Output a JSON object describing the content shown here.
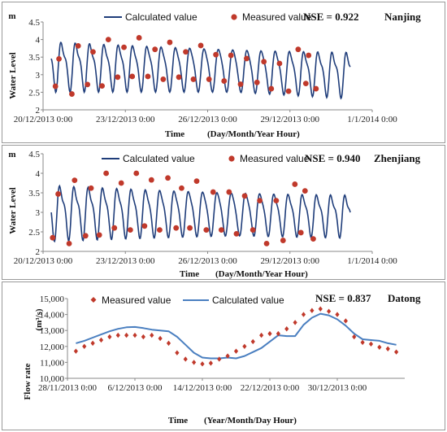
{
  "chart_data": [
    {
      "type": "line",
      "station": "Nanjing",
      "nse": "NSE = 0.922",
      "ylabel": "Water Level",
      "yunit": "m",
      "xlabel_main": "Time",
      "xlabel_sub": "(Day/Month/Year  Hour)",
      "ylim": [
        2,
        4.5
      ],
      "yticks": [
        "2",
        "2.5",
        "3",
        "3.5",
        "4",
        "4.5"
      ],
      "xlim": [
        0,
        12
      ],
      "xtick_labels": [
        "20/12/2013 0:00",
        "23/12/2013 0:00",
        "26/12/2013 0:00",
        "29/12/2013 0:00",
        "1/1/2014 0:00"
      ],
      "xtick_days": [
        0,
        3,
        6,
        9,
        12
      ],
      "legend": [
        "Calculated value",
        "Measured value"
      ],
      "series": [
        {
          "name": "Calculated value",
          "model": "tide",
          "x_range": [
            0.3,
            11.2
          ],
          "params": {
            "mean": 3.3,
            "amp_start": 0.85,
            "amp_end": 0.78,
            "mean_drift": -0.25,
            "period": 0.52,
            "phase": 0.05,
            "high_amp_start": 1.0,
            "high_amp_mid": 0.4,
            "mid_day": 7.0
          }
        },
        {
          "name": "Measured value",
          "points": [
            [
              0.45,
              2.67
            ],
            [
              0.58,
              3.45
            ],
            [
              1.05,
              2.45
            ],
            [
              1.28,
              3.82
            ],
            [
              1.62,
              2.72
            ],
            [
              1.82,
              3.65
            ],
            [
              2.15,
              2.68
            ],
            [
              2.38,
              4.0
            ],
            [
              2.72,
              2.93
            ],
            [
              2.95,
              3.78
            ],
            [
              3.25,
              2.95
            ],
            [
              3.5,
              4.05
            ],
            [
              3.82,
              2.95
            ],
            [
              4.08,
              3.72
            ],
            [
              4.38,
              2.87
            ],
            [
              4.62,
              3.92
            ],
            [
              4.95,
              2.93
            ],
            [
              5.2,
              3.65
            ],
            [
              5.48,
              2.87
            ],
            [
              5.75,
              3.83
            ],
            [
              6.05,
              2.87
            ],
            [
              6.3,
              3.57
            ],
            [
              6.6,
              2.82
            ],
            [
              6.85,
              3.55
            ],
            [
              7.2,
              2.73
            ],
            [
              7.42,
              3.46
            ],
            [
              7.8,
              2.78
            ],
            [
              8.05,
              3.37
            ],
            [
              8.32,
              2.6
            ],
            [
              8.62,
              3.32
            ],
            [
              8.95,
              2.53
            ],
            [
              9.3,
              3.72
            ],
            [
              9.58,
              2.75
            ],
            [
              9.68,
              3.55
            ],
            [
              9.95,
              2.6
            ]
          ]
        }
      ]
    },
    {
      "type": "line",
      "station": "Zhenjiang",
      "nse": "NSE = 0.940",
      "ylabel": "Water Level",
      "yunit": "m",
      "xlabel_main": "Time",
      "xlabel_sub": "(Day/Month/Year  Hour)",
      "ylim": [
        2,
        4.5
      ],
      "yticks": [
        "2",
        "2.5",
        "3",
        "3.5",
        "4",
        "4.5"
      ],
      "xlim": [
        0,
        12
      ],
      "xtick_labels": [
        "20/12/2013 0:00",
        "23/12/2013 0:00",
        "26/12/2013 0:00",
        "29/12/2013 0:00",
        "1/1/2014 0:00"
      ],
      "xtick_days": [
        0,
        3,
        6,
        9,
        12
      ],
      "legend": [
        "Calculated value",
        "Measured value"
      ],
      "series": [
        {
          "name": "Calculated value",
          "model": "tide",
          "x_range": [
            0.3,
            11.2
          ],
          "params": {
            "mean": 3.05,
            "amp_start": 0.85,
            "amp_end": 0.65,
            "mean_drift": -0.1,
            "period": 0.52,
            "phase": 0.0,
            "high_amp_start": 1.0,
            "high_amp_mid": 0.45,
            "mid_day": 7.0
          }
        },
        {
          "name": "Measured value",
          "points": [
            [
              0.35,
              2.35
            ],
            [
              0.55,
              3.47
            ],
            [
              0.95,
              2.2
            ],
            [
              1.15,
              3.82
            ],
            [
              1.55,
              2.4
            ],
            [
              1.75,
              3.62
            ],
            [
              2.05,
              2.42
            ],
            [
              2.3,
              4.0
            ],
            [
              2.6,
              2.6
            ],
            [
              2.85,
              3.75
            ],
            [
              3.18,
              2.55
            ],
            [
              3.4,
              4.0
            ],
            [
              3.7,
              2.65
            ],
            [
              3.95,
              3.83
            ],
            [
              4.25,
              2.55
            ],
            [
              4.55,
              3.88
            ],
            [
              4.85,
              2.6
            ],
            [
              5.05,
              3.62
            ],
            [
              5.35,
              2.6
            ],
            [
              5.6,
              3.8
            ],
            [
              5.95,
              2.55
            ],
            [
              6.2,
              3.52
            ],
            [
              6.5,
              2.55
            ],
            [
              6.78,
              3.52
            ],
            [
              7.05,
              2.45
            ],
            [
              7.35,
              3.42
            ],
            [
              7.65,
              2.55
            ],
            [
              7.9,
              3.3
            ],
            [
              8.15,
              2.2
            ],
            [
              8.5,
              3.3
            ],
            [
              8.75,
              2.28
            ],
            [
              9.18,
              3.72
            ],
            [
              9.4,
              2.48
            ],
            [
              9.55,
              3.55
            ],
            [
              9.85,
              2.32
            ]
          ]
        }
      ]
    },
    {
      "type": "line",
      "station": "Datong",
      "nse": "NSE = 0.837",
      "ylabel": "Flow rate",
      "yunit": "(m³/s)",
      "xlabel_main": "Time",
      "xlabel_sub": "(Year/Month/Day  Hour)",
      "ylim": [
        10000,
        15000
      ],
      "yticks": [
        "10,000",
        "11,000",
        "12,000",
        "13,000",
        "14,000",
        "15,000"
      ],
      "xlim": [
        0,
        40
      ],
      "xtick_labels": [
        "28/11/2013 0:00",
        "6/12/2013 0:00",
        "14/12/2013 0:00",
        "22/12/2013 0:00",
        "30/12/2013 0:00"
      ],
      "xtick_days": [
        0,
        8,
        16,
        24,
        32
      ],
      "legend": [
        "Measured value",
        "Calculated value"
      ],
      "series": [
        {
          "name": "Calculated value",
          "points": [
            [
              1,
              12200
            ],
            [
              2,
              12350
            ],
            [
              3,
              12550
            ],
            [
              4,
              12750
            ],
            [
              5,
              12950
            ],
            [
              6,
              13100
            ],
            [
              7,
              13200
            ],
            [
              8,
              13220
            ],
            [
              9,
              13150
            ],
            [
              10,
              13050
            ],
            [
              11,
              13000
            ],
            [
              12,
              12950
            ],
            [
              13,
              12600
            ],
            [
              14,
              12100
            ],
            [
              15,
              11600
            ],
            [
              16,
              11300
            ],
            [
              17,
              11250
            ],
            [
              18,
              11250
            ],
            [
              19,
              11300
            ],
            [
              20,
              11250
            ],
            [
              21,
              11400
            ],
            [
              22,
              11650
            ],
            [
              23,
              11900
            ],
            [
              24,
              12300
            ],
            [
              25,
              12700
            ],
            [
              26,
              12650
            ],
            [
              27,
              12650
            ],
            [
              28,
              13350
            ],
            [
              29,
              13800
            ],
            [
              30,
              14050
            ],
            [
              31,
              13950
            ],
            [
              32,
              13700
            ],
            [
              33,
              13300
            ],
            [
              34,
              12800
            ],
            [
              35,
              12450
            ],
            [
              36,
              12400
            ],
            [
              37,
              12350
            ],
            [
              38,
              12200
            ],
            [
              39,
              12100
            ]
          ]
        },
        {
          "name": "Measured value",
          "points": [
            [
              1,
              11700
            ],
            [
              2,
              12000
            ],
            [
              3,
              12200
            ],
            [
              4,
              12400
            ],
            [
              5,
              12600
            ],
            [
              6,
              12700
            ],
            [
              7,
              12700
            ],
            [
              8,
              12700
            ],
            [
              9,
              12600
            ],
            [
              10,
              12700
            ],
            [
              11,
              12500
            ],
            [
              12,
              12200
            ],
            [
              13,
              11600
            ],
            [
              14,
              11200
            ],
            [
              15,
              11000
            ],
            [
              16,
              10900
            ],
            [
              17,
              10950
            ],
            [
              18,
              11200
            ],
            [
              19,
              11400
            ],
            [
              20,
              11700
            ],
            [
              21,
              12000
            ],
            [
              22,
              12300
            ],
            [
              23,
              12700
            ],
            [
              24,
              12800
            ],
            [
              25,
              12800
            ],
            [
              26,
              13100
            ],
            [
              27,
              13500
            ],
            [
              28,
              14000
            ],
            [
              29,
              14250
            ],
            [
              30,
              14350
            ],
            [
              31,
              14200
            ],
            [
              32,
              14000
            ],
            [
              33,
              13600
            ],
            [
              34,
              12600
            ],
            [
              35,
              12250
            ],
            [
              36,
              12150
            ],
            [
              37,
              11950
            ],
            [
              38,
              11850
            ],
            [
              39,
              11650
            ]
          ]
        }
      ]
    }
  ],
  "colors": {
    "line": "#1f3d7a",
    "marker": "#c0392b",
    "axis": "#888888",
    "flowline": "#4a7fc0"
  }
}
